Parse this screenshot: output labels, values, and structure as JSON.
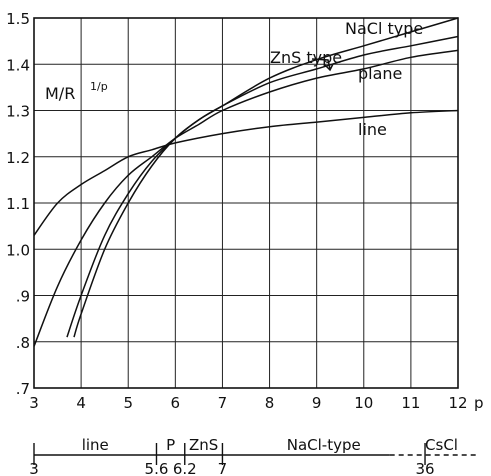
{
  "chart_data": {
    "type": "line",
    "title": "",
    "ylabel": "M/R",
    "ylabel_superscript": "1/p",
    "xlabel": "p",
    "xlim": [
      3,
      12
    ],
    "ylim": [
      0.7,
      1.5
    ],
    "grid": true,
    "x_ticks": [
      "3",
      "4",
      "5",
      "6",
      "7",
      "8",
      "9",
      "10",
      "11",
      "12"
    ],
    "y_ticks": [
      ".7",
      ".8",
      ".9",
      "1.0",
      "1.1",
      "1.2",
      "1.3",
      "1.4",
      "1.5"
    ],
    "series": [
      {
        "name": "NaCl type",
        "x": [
          3.85,
          4.0,
          4.5,
          5.0,
          5.5,
          6.0,
          6.5,
          7.0,
          8.0,
          9.0,
          10.0,
          11.0,
          12.0
        ],
        "y": [
          0.81,
          0.86,
          1.0,
          1.1,
          1.18,
          1.24,
          1.28,
          1.31,
          1.37,
          1.41,
          1.44,
          1.47,
          1.5
        ]
      },
      {
        "name": "ZnS type",
        "x": [
          3.7,
          4.0,
          4.5,
          5.0,
          5.5,
          6.0,
          6.5,
          7.0,
          8.0,
          9.0,
          10.0,
          11.0,
          12.0
        ],
        "y": [
          0.81,
          0.9,
          1.03,
          1.12,
          1.19,
          1.24,
          1.28,
          1.31,
          1.36,
          1.39,
          1.42,
          1.44,
          1.46
        ]
      },
      {
        "name": "plane",
        "x": [
          3.0,
          3.5,
          4.0,
          4.5,
          5.0,
          5.5,
          6.0,
          6.5,
          7.0,
          8.0,
          9.0,
          10.0,
          11.0,
          12.0
        ],
        "y": [
          0.79,
          0.92,
          1.02,
          1.1,
          1.16,
          1.2,
          1.24,
          1.27,
          1.3,
          1.34,
          1.37,
          1.39,
          1.415,
          1.43
        ]
      },
      {
        "name": "line",
        "x": [
          3.0,
          3.5,
          4.0,
          4.5,
          5.0,
          5.5,
          6.0,
          7.0,
          8.0,
          9.0,
          10.0,
          11.0,
          12.0
        ],
        "y": [
          1.03,
          1.1,
          1.14,
          1.17,
          1.2,
          1.215,
          1.23,
          1.25,
          1.265,
          1.275,
          1.285,
          1.295,
          1.3
        ]
      }
    ],
    "annotations": [
      "NaCl type",
      "ZnS type",
      "plane",
      "line"
    ],
    "bottom_scale": {
      "segments": [
        {
          "label": "line",
          "from": 3.0,
          "to": 5.6
        },
        {
          "label": "P",
          "from": 5.6,
          "to": 6.2
        },
        {
          "label": "ZnS",
          "from": 6.2,
          "to": 7.0
        },
        {
          "label": "NaCl-type",
          "from": 7.0,
          "to": 11.3
        },
        {
          "label": "CsCl",
          "from": 11.3,
          "to": 12.0
        }
      ],
      "tick_labels": [
        "3",
        "5.6",
        "6.2",
        "7",
        "36"
      ]
    }
  }
}
